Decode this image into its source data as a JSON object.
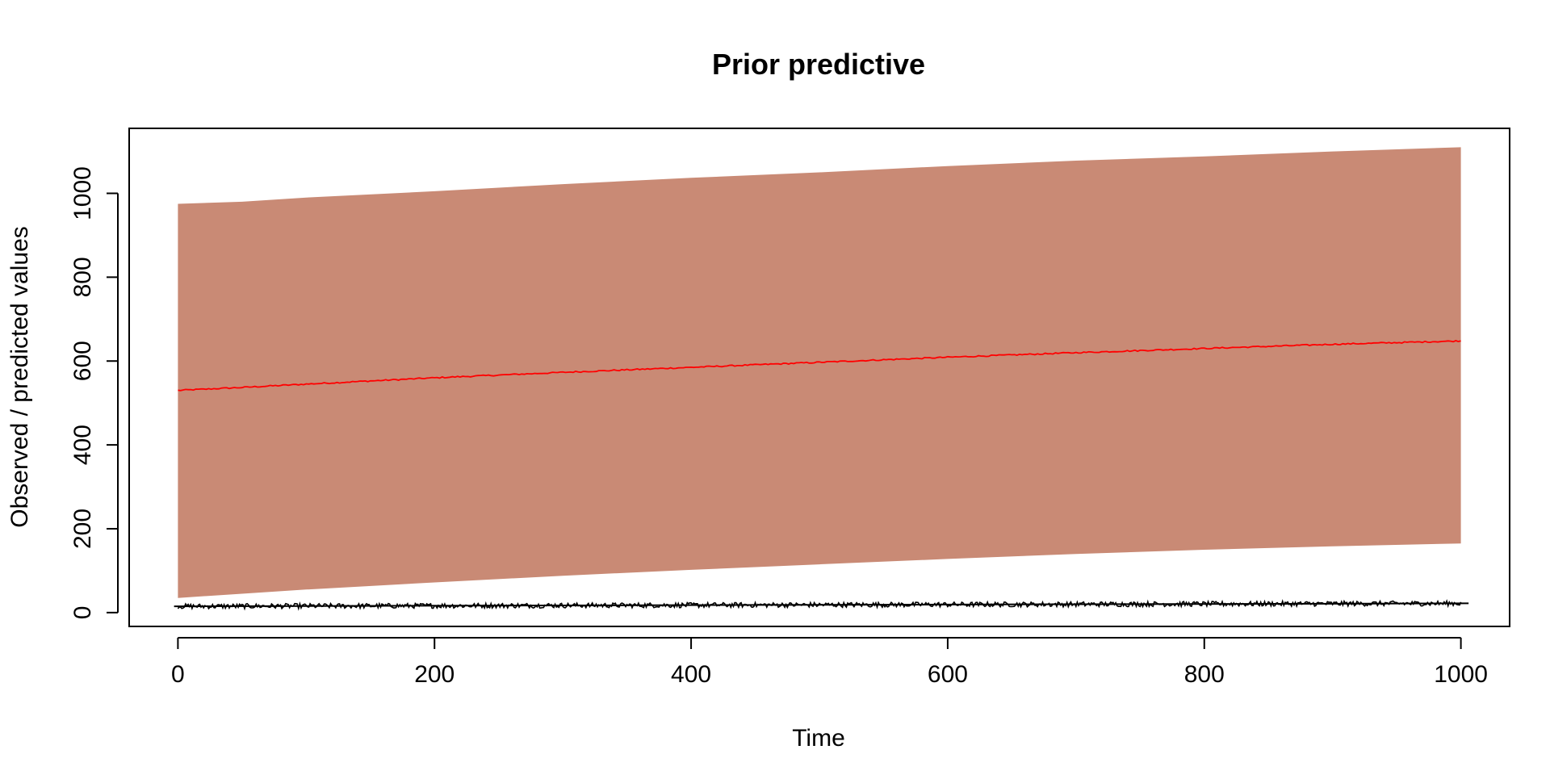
{
  "chart_data": {
    "type": "area",
    "title": "Prior predictive",
    "xlabel": "Time",
    "ylabel": "Observed / predicted values",
    "xlim": [
      -38,
      1038
    ],
    "ylim": [
      -33,
      1155
    ],
    "x_ticks": [
      0,
      200,
      400,
      600,
      800,
      1000
    ],
    "y_ticks": [
      0,
      200,
      400,
      600,
      800,
      1000
    ],
    "x_tick_labels": [
      "0",
      "200",
      "400",
      "600",
      "800",
      "1000"
    ],
    "y_tick_labels": [
      "0",
      "200",
      "400",
      "600",
      "800",
      "1000"
    ],
    "grid": false,
    "legend": "none",
    "colors": {
      "band": "#c98a75",
      "median": "#ff0000",
      "observed": "#000000",
      "axes": "#000000"
    },
    "band": {
      "x": [
        0,
        50,
        100,
        200,
        300,
        400,
        500,
        600,
        700,
        800,
        900,
        1000
      ],
      "upper": [
        975,
        980,
        990,
        1005,
        1022,
        1037,
        1050,
        1065,
        1078,
        1088,
        1100,
        1110
      ],
      "lower": [
        35,
        45,
        55,
        72,
        88,
        102,
        115,
        128,
        140,
        150,
        158,
        165
      ]
    },
    "series": [
      {
        "kind": "median",
        "x": [
          0,
          50,
          100,
          200,
          300,
          400,
          500,
          600,
          700,
          800,
          900,
          1000
        ],
        "values": [
          530,
          537,
          545,
          560,
          573,
          585,
          597,
          609,
          620,
          630,
          640,
          648
        ]
      },
      {
        "kind": "observed",
        "x": [
          0,
          1000
        ],
        "values": [
          15,
          22
        ],
        "spread": 12
      }
    ]
  }
}
